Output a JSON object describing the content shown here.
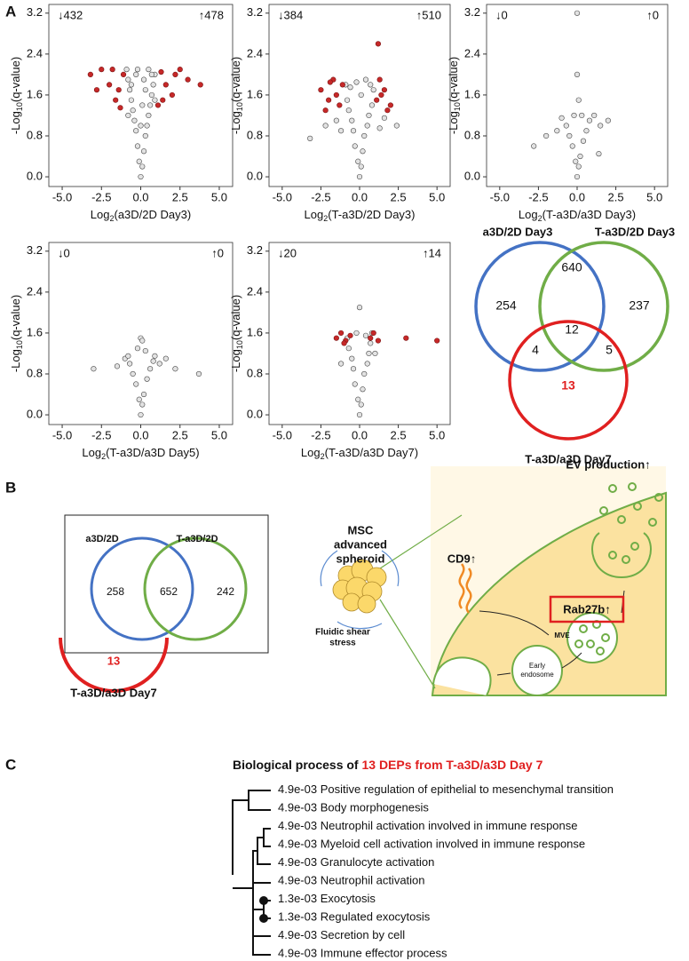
{
  "panel_labels": [
    "A",
    "B",
    "C"
  ],
  "panel_a": {
    "axes": {
      "y_label": {
        "base": "-Log",
        "sub": "10",
        "rest": "(q-value)"
      },
      "xlim": [
        -5.85,
        5.85
      ],
      "ylim": [
        -0.19,
        3.37
      ],
      "xticks": [
        {
          "value": -5,
          "label": "-5.0"
        },
        {
          "value": -2.5,
          "label": "-2.5"
        },
        {
          "value": 0,
          "label": "0.0"
        },
        {
          "value": 2.5,
          "label": "2.5"
        },
        {
          "value": 5,
          "label": "5.0"
        }
      ],
      "yticks": [
        {
          "value": 0,
          "label": "0.0"
        },
        {
          "value": 0.8,
          "label": "0.8"
        },
        {
          "value": 1.6,
          "label": "1.6"
        },
        {
          "value": 2.4,
          "label": "2.4"
        },
        {
          "value": 3.2,
          "label": "3.2"
        }
      ],
      "point_color": "#e2e2e2",
      "sig_color": "#c62828"
    },
    "plots": [
      {
        "type": "scatter",
        "down": "↓432",
        "up": "↑478",
        "x_label": {
          "base": "Log",
          "sub": "2",
          "rest": "(a3D/2D Day3)"
        },
        "x": [
          0,
          0.1,
          -0.1,
          0.2,
          -0.2,
          0.3,
          -0.3,
          0.4,
          -0.4,
          0.5,
          -0.5,
          0.6,
          -0.6,
          0.7,
          -0.7,
          0.8,
          -0.8,
          0.9,
          -0.9,
          0.2,
          -0.3,
          0.5,
          -0.6,
          0.0,
          0.1,
          -0.8,
          0.9,
          0.3,
          -0.2,
          0.7
        ],
        "y": [
          0.0,
          0.2,
          0.3,
          0.5,
          0.6,
          0.8,
          0.9,
          1.0,
          1.1,
          1.2,
          1.3,
          1.4,
          1.5,
          1.6,
          1.7,
          1.8,
          1.9,
          2.0,
          2.1,
          1.9,
          2.0,
          2.1,
          1.8,
          1.0,
          1.4,
          1.2,
          1.5,
          1.7,
          2.1,
          2.0
        ],
        "sig_x": [
          -3.2,
          -2.5,
          -2.0,
          -1.6,
          -1.3,
          -1.1,
          -2.8,
          -1.8,
          1.1,
          1.3,
          1.6,
          2.0,
          2.5,
          3.0,
          3.8,
          1.4,
          -1.4,
          2.2
        ],
        "sig_y": [
          2.0,
          2.1,
          1.8,
          1.5,
          1.35,
          2.0,
          1.7,
          2.1,
          1.4,
          2.05,
          1.8,
          1.6,
          2.1,
          1.9,
          1.8,
          1.5,
          1.7,
          2.0
        ]
      },
      {
        "type": "scatter",
        "down": "↓384",
        "up": "↑510",
        "x_label": {
          "base": "Log",
          "sub": "2",
          "rest": "(T-a3D/2D Day3)"
        },
        "x": [
          0,
          0.1,
          -0.1,
          0.2,
          -0.3,
          0.3,
          -0.4,
          0.5,
          -0.5,
          0.6,
          -0.7,
          0.8,
          -0.8,
          0.9,
          -0.9,
          0.4,
          -0.2,
          -1.5,
          -2.2,
          1.6,
          2.4,
          -3.2,
          -1.2,
          1.3,
          0.1,
          -0.6,
          0.7
        ],
        "y": [
          0,
          0.2,
          0.3,
          0.5,
          0.6,
          0.8,
          0.9,
          1.0,
          1.1,
          1.2,
          1.3,
          1.4,
          1.5,
          1.7,
          1.8,
          1.9,
          1.85,
          1.1,
          1.0,
          1.15,
          1.0,
          0.75,
          0.9,
          0.95,
          1.6,
          1.75,
          1.8
        ],
        "sig_x": [
          -2.5,
          -2.0,
          -1.7,
          -1.3,
          -1.1,
          -2.2,
          -1.5,
          1.1,
          1.3,
          1.6,
          2.0,
          1.2,
          1.8,
          -1.9,
          1.4
        ],
        "sig_y": [
          1.7,
          1.5,
          1.9,
          1.4,
          1.8,
          1.3,
          1.6,
          1.5,
          1.9,
          1.7,
          1.4,
          2.6,
          1.3,
          1.85,
          1.6
        ]
      },
      {
        "type": "scatter",
        "down": "↓0",
        "up": "↑0",
        "x_label": {
          "base": "Log",
          "sub": "2",
          "rest": "(T-a3D/a3D Day3)"
        },
        "x": [
          0,
          0.1,
          -0.1,
          0.2,
          -0.3,
          0.4,
          -0.5,
          0.6,
          -0.7,
          0.8,
          -1.0,
          1.1,
          -1.3,
          1.5,
          -2.0,
          2.0,
          -2.8,
          0.0,
          0.0,
          0.1,
          -0.2,
          0.3,
          1.4
        ],
        "y": [
          0,
          0.2,
          0.3,
          0.4,
          0.6,
          0.7,
          0.8,
          0.9,
          1.0,
          1.1,
          1.15,
          1.2,
          0.9,
          1.0,
          0.8,
          1.1,
          0.6,
          3.2,
          2.0,
          1.5,
          1.2,
          1.2,
          0.45
        ],
        "sig_x": [],
        "sig_y": []
      },
      {
        "type": "scatter",
        "down": "↓0",
        "up": "↑0",
        "x_label": {
          "base": "Log",
          "sub": "2",
          "rest": "(T-a3D/a3D Day5)"
        },
        "x": [
          0,
          0.1,
          -0.1,
          0.2,
          -0.3,
          0.4,
          -0.5,
          0.6,
          -0.7,
          0.8,
          -1.0,
          1.2,
          -1.5,
          1.6,
          -3.0,
          2.2,
          3.7,
          0.0,
          0.1,
          -0.2,
          0.3,
          -0.8,
          0.9
        ],
        "y": [
          0,
          0.2,
          0.3,
          0.4,
          0.6,
          0.7,
          0.8,
          0.9,
          1.0,
          1.05,
          1.1,
          1.0,
          0.95,
          1.1,
          0.9,
          0.9,
          0.8,
          1.5,
          1.45,
          1.3,
          1.25,
          1.15,
          1.15
        ],
        "sig_x": [],
        "sig_y": []
      },
      {
        "type": "scatter",
        "down": "↓20",
        "up": "↑14",
        "x_label": {
          "base": "Log",
          "sub": "2",
          "rest": "(T-a3D/a3D Day7)"
        },
        "x": [
          0,
          0.1,
          -0.1,
          0.2,
          -0.3,
          0.3,
          -0.4,
          0.5,
          -0.5,
          0.6,
          -0.7,
          0.7,
          -0.8,
          0.8,
          0.0,
          -0.2,
          0.4,
          -1.2,
          1.0
        ],
        "y": [
          0,
          0.2,
          0.3,
          0.5,
          0.6,
          0.8,
          0.9,
          1.0,
          1.1,
          1.2,
          1.3,
          1.4,
          1.5,
          1.6,
          2.1,
          1.6,
          1.55,
          1.0,
          1.2
        ],
        "sig_x": [
          -1.5,
          -1.2,
          -0.9,
          -0.6,
          0.7,
          0.9,
          1.2,
          3.0,
          5.0,
          -1.0
        ],
        "sig_y": [
          1.5,
          1.6,
          1.45,
          1.55,
          1.5,
          1.6,
          1.45,
          1.5,
          1.45,
          1.4
        ]
      }
    ],
    "venn": {
      "sets": [
        "a3D/2D Day3",
        "T-a3D/2D Day3",
        "T-a3D/a3D Day7"
      ],
      "only_a": 254,
      "a_b": 640,
      "only_b": 237,
      "a_b_c": 12,
      "a_c": 4,
      "b_c": 5,
      "only_c": 13
    }
  },
  "panel_b": {
    "venn": {
      "sets": [
        "a3D/2D",
        "T-a3D/2D"
      ],
      "only_a": 258,
      "both": 652,
      "only_b": 242
    },
    "illustration": {
      "ev": "EV production↑",
      "msc": [
        "MSC",
        "advanced",
        "spheroid"
      ],
      "shear": [
        "Fluidic shear",
        "stress"
      ],
      "cd9": "CD9↑",
      "rab": "Rab27b↑",
      "mve": "MVE",
      "endosome": [
        "Early",
        "endosome"
      ]
    }
  },
  "panel_c": {
    "count": 13,
    "set": "T-a3D/a3D Day7",
    "title": {
      "lead": "Biological process of ",
      "highlight": "13 DEPs from T-a3D/a3D Day 7"
    },
    "terms": [
      {
        "p": "4.9e-03",
        "term": "Positive regulation of epithelial to mesenchymal transition"
      },
      {
        "p": "4.9e-03",
        "term": "Body morphogenesis"
      },
      {
        "p": "4.9e-03",
        "term": "Neutrophil activation involved in immune response"
      },
      {
        "p": "4.9e-03",
        "term": "Myeloid cell activation involved in immune response"
      },
      {
        "p": "4.9e-03",
        "term": "Granulocyte activation"
      },
      {
        "p": "4.9e-03",
        "term": "Neutrophil activation"
      },
      {
        "p": "1.3e-03",
        "term": "Exocytosis"
      },
      {
        "p": "1.3e-03",
        "term": "Regulated exocytosis"
      },
      {
        "p": "4.9e-03",
        "term": "Secretion by cell"
      },
      {
        "p": "4.9e-03",
        "term": "Immune effector process"
      }
    ]
  }
}
